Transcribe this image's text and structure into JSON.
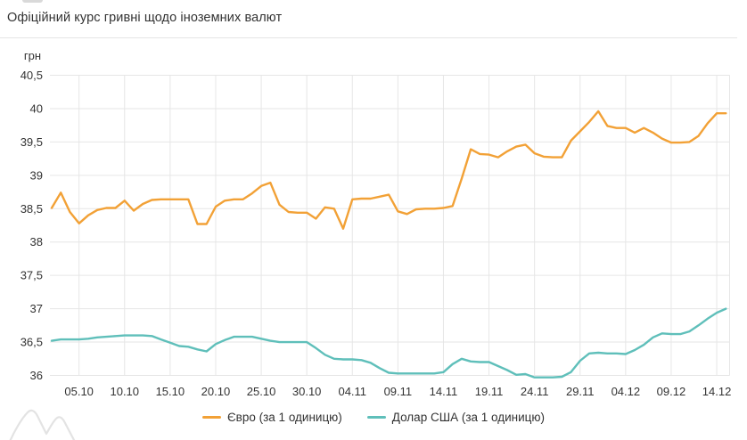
{
  "header": {
    "title": "Офіційний курс гривні щодо іноземних валют"
  },
  "legend": {
    "items": [
      {
        "label": "Євро (за 1 одиницю)",
        "color": "#F2A136"
      },
      {
        "label": "Долар США (за 1 одиницю)",
        "color": "#5FBFBA"
      }
    ]
  },
  "colors": {
    "euro_line": "#F2A136",
    "usd_line": "#5FBFBA",
    "grid": "#E6E6E6",
    "axis_text": "#333333",
    "divider": "#E4E4E4"
  },
  "chart_data": {
    "type": "line",
    "title": "Офіційний курс гривні щодо іноземних валют",
    "ylabel": "грн",
    "xlabel": "",
    "ylim": [
      36,
      40.5
    ],
    "ytick_step": 0.5,
    "grid": true,
    "legend_position": "bottom",
    "yticks": [
      {
        "label": "40,5",
        "value": 40.5
      },
      {
        "label": "40",
        "value": 40
      },
      {
        "label": "39,5",
        "value": 39.5
      },
      {
        "label": "39",
        "value": 39
      },
      {
        "label": "38,5",
        "value": 38.5
      },
      {
        "label": "38",
        "value": 38
      },
      {
        "label": "37,5",
        "value": 37.5
      },
      {
        "label": "37",
        "value": 37
      },
      {
        "label": "36,5",
        "value": 36.5
      },
      {
        "label": "36",
        "value": 36
      }
    ],
    "xticks": [
      {
        "label": "05.10",
        "index": 3
      },
      {
        "label": "10.10",
        "index": 8
      },
      {
        "label": "15.10",
        "index": 13
      },
      {
        "label": "20.10",
        "index": 18
      },
      {
        "label": "25.10",
        "index": 23
      },
      {
        "label": "30.10",
        "index": 28
      },
      {
        "label": "04.11",
        "index": 33
      },
      {
        "label": "09.11",
        "index": 38
      },
      {
        "label": "14.11",
        "index": 43
      },
      {
        "label": "19.11",
        "index": 48
      },
      {
        "label": "24.11",
        "index": 53
      },
      {
        "label": "29.11",
        "index": 58
      },
      {
        "label": "04.12",
        "index": 63
      },
      {
        "label": "09.12",
        "index": 68
      },
      {
        "label": "14.12",
        "index": 73
      }
    ],
    "series": [
      {
        "name": "Євро (за 1 одиницю)",
        "color": "#F2A136",
        "values": [
          38.51,
          38.74,
          38.45,
          38.28,
          38.4,
          38.48,
          38.51,
          38.51,
          38.62,
          38.47,
          38.57,
          38.63,
          38.64,
          38.64,
          38.64,
          38.64,
          38.27,
          38.27,
          38.53,
          38.62,
          38.64,
          38.64,
          38.73,
          38.84,
          38.89,
          38.56,
          38.45,
          38.44,
          38.44,
          38.35,
          38.52,
          38.5,
          38.2,
          38.64,
          38.65,
          38.65,
          38.68,
          38.71,
          38.46,
          38.42,
          38.49,
          38.5,
          38.5,
          38.51,
          38.54,
          38.95,
          39.39,
          39.32,
          39.31,
          39.27,
          39.36,
          39.43,
          39.46,
          39.33,
          39.28,
          39.27,
          39.27,
          39.52,
          39.66,
          39.8,
          39.96,
          39.74,
          39.71,
          39.71,
          39.64,
          39.71,
          39.64,
          39.55,
          39.49,
          39.49,
          39.5,
          39.59,
          39.78,
          39.93,
          39.93
        ]
      },
      {
        "name": "Долар США (за 1 одиницю)",
        "color": "#5FBFBA",
        "values": [
          36.52,
          36.54,
          36.54,
          36.54,
          36.55,
          36.57,
          36.58,
          36.59,
          36.6,
          36.6,
          36.6,
          36.59,
          36.54,
          36.49,
          36.44,
          36.43,
          36.39,
          36.36,
          36.47,
          36.53,
          36.58,
          36.58,
          36.58,
          36.55,
          36.52,
          36.5,
          36.5,
          36.5,
          36.5,
          36.41,
          36.31,
          36.25,
          36.24,
          36.24,
          36.23,
          36.19,
          36.11,
          36.04,
          36.03,
          36.03,
          36.03,
          36.03,
          36.03,
          36.05,
          36.17,
          36.25,
          36.21,
          36.2,
          36.2,
          36.14,
          36.08,
          36.01,
          36.02,
          35.97,
          35.97,
          35.97,
          35.98,
          36.05,
          36.22,
          36.33,
          36.34,
          36.33,
          36.33,
          36.32,
          36.38,
          36.46,
          36.57,
          36.63,
          36.62,
          36.62,
          36.66,
          36.75,
          36.85,
          36.94,
          37.0
        ]
      }
    ]
  }
}
